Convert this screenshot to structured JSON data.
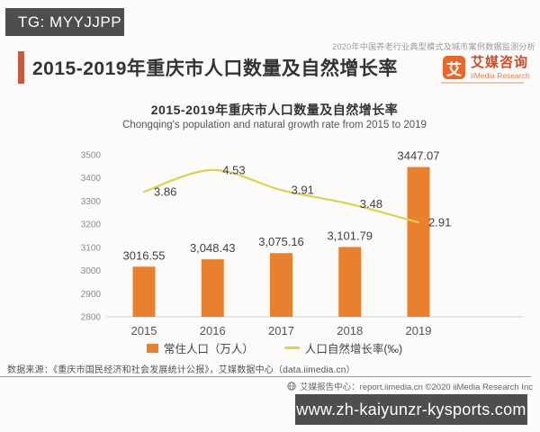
{
  "watermark_top": "TG: MYYJJPP",
  "report_tagline": "2020年中国养老行业典型模式及城市案例数据监测分析",
  "header": {
    "title": "2015-2019年重庆市人口数量及自然增长率"
  },
  "logo": {
    "symbol": "艾",
    "name_cn": "艾媒咨询",
    "name_en": "iiMedia Research"
  },
  "chart_data": {
    "type": "combo",
    "title": "2015-2019年重庆市人口数量及自然增长率",
    "subtitle": "Chongqing's population and natural growth rate from 2015 to 2019",
    "categories": [
      "2015",
      "2016",
      "2017",
      "2018",
      "2019"
    ],
    "series": [
      {
        "name": "常住人口（万人）",
        "type": "bar",
        "axis": "y1",
        "values": [
          3016.55,
          3048.43,
          3075.16,
          3101.79,
          3447.07
        ],
        "labels": [
          "3016.55",
          "3,048.43",
          "3,075.16",
          "3,101.79",
          "3447.07"
        ],
        "color": "#E8802E"
      },
      {
        "name": "人口自然增长率(‰)",
        "type": "line",
        "axis": "y2",
        "values": [
          3.86,
          4.53,
          3.91,
          3.48,
          2.91
        ],
        "labels": [
          "3.86",
          "4.53",
          "3.91",
          "3.48",
          "2.91"
        ],
        "color": "#DCD152"
      }
    ],
    "y1": {
      "min": 2800,
      "max": 3500,
      "step": 100
    },
    "y2": {
      "min": 0,
      "max": 5,
      "axis_visible": false
    },
    "grid": false,
    "legend_position": "bottom"
  },
  "footer": {
    "source": "数据来源：《重庆市国民经济和社会发展统计公报》，艾媒数据中心（data.iimedia.cn）",
    "copyright": "艾媒报告中心：report.iimedia.cn  ©2020  iiMedia Research  Inc"
  },
  "watermark_bottom": "www.zh-kaiyunzr-kysports.com",
  "colors": {
    "bar": "#E8802E",
    "line": "#DCD152",
    "accent": "#C45A41",
    "badge_bg": "#4E4E4E"
  }
}
